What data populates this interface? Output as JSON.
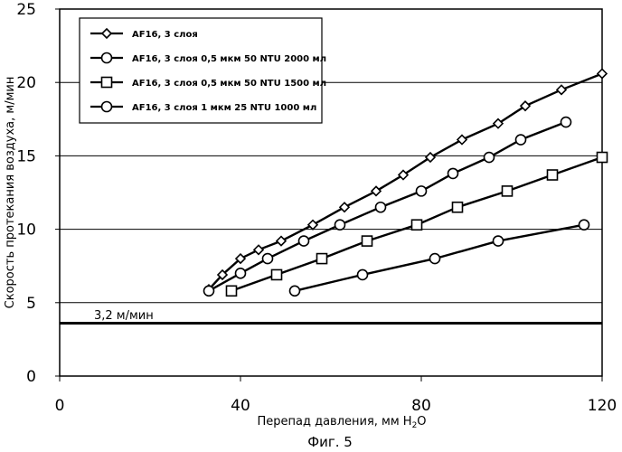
{
  "chart_data": {
    "type": "line",
    "xlabel": "Перепад давления, мм H",
    "xlabel_sub": "2",
    "xlabel_end": "O",
    "ylabel": "Скорость протекания воздуха, м/мин",
    "xlim": [
      0,
      120
    ],
    "ylim": [
      0,
      25
    ],
    "x_ticks": [
      "0",
      "40",
      "80",
      "120"
    ],
    "y_ticks": [
      "0",
      "5",
      "10",
      "15",
      "20",
      "25"
    ],
    "grid": "horizontal",
    "legend_position": "top-left",
    "reference_line": {
      "y": 3.6,
      "label": "3,2 м/мин"
    },
    "caption": "Фиг. 5",
    "series": [
      {
        "name": "AF16, 3 слоя",
        "marker": "diamond",
        "points": [
          [
            33,
            5.9
          ],
          [
            36,
            6.9
          ],
          [
            40,
            8.0
          ],
          [
            44,
            8.6
          ],
          [
            49,
            9.2
          ],
          [
            56,
            10.3
          ],
          [
            63,
            11.5
          ],
          [
            70,
            12.6
          ],
          [
            76,
            13.7
          ],
          [
            82,
            14.9
          ],
          [
            89,
            16.1
          ],
          [
            97,
            17.2
          ],
          [
            103,
            18.4
          ],
          [
            111,
            19.5
          ],
          [
            120,
            20.6
          ]
        ]
      },
      {
        "name": "AF16, 3 слоя 0,5 мкм 50 NTU 2000 мл",
        "marker": "circle",
        "points": [
          [
            33,
            5.8
          ],
          [
            40,
            7.0
          ],
          [
            46,
            8.0
          ],
          [
            54,
            9.2
          ],
          [
            62,
            10.3
          ],
          [
            71,
            11.5
          ],
          [
            80,
            12.6
          ],
          [
            87,
            13.8
          ],
          [
            95,
            14.9
          ],
          [
            102,
            16.1
          ],
          [
            112,
            17.3
          ]
        ]
      },
      {
        "name": "AF16, 3 слоя 0,5 мкм 50 NTU 1500 мл",
        "marker": "square",
        "points": [
          [
            38,
            5.8
          ],
          [
            48,
            6.9
          ],
          [
            58,
            8.0
          ],
          [
            68,
            9.2
          ],
          [
            79,
            10.3
          ],
          [
            88,
            11.5
          ],
          [
            99,
            12.6
          ],
          [
            109,
            13.7
          ],
          [
            120,
            14.9
          ]
        ]
      },
      {
        "name": "AF16, 3 слоя 1 мкм 25 NTU 1000 мл",
        "marker": "circle",
        "points": [
          [
            52,
            5.8
          ],
          [
            67,
            6.9
          ],
          [
            83,
            8.0
          ],
          [
            97,
            9.2
          ],
          [
            116,
            10.3
          ]
        ]
      }
    ]
  }
}
